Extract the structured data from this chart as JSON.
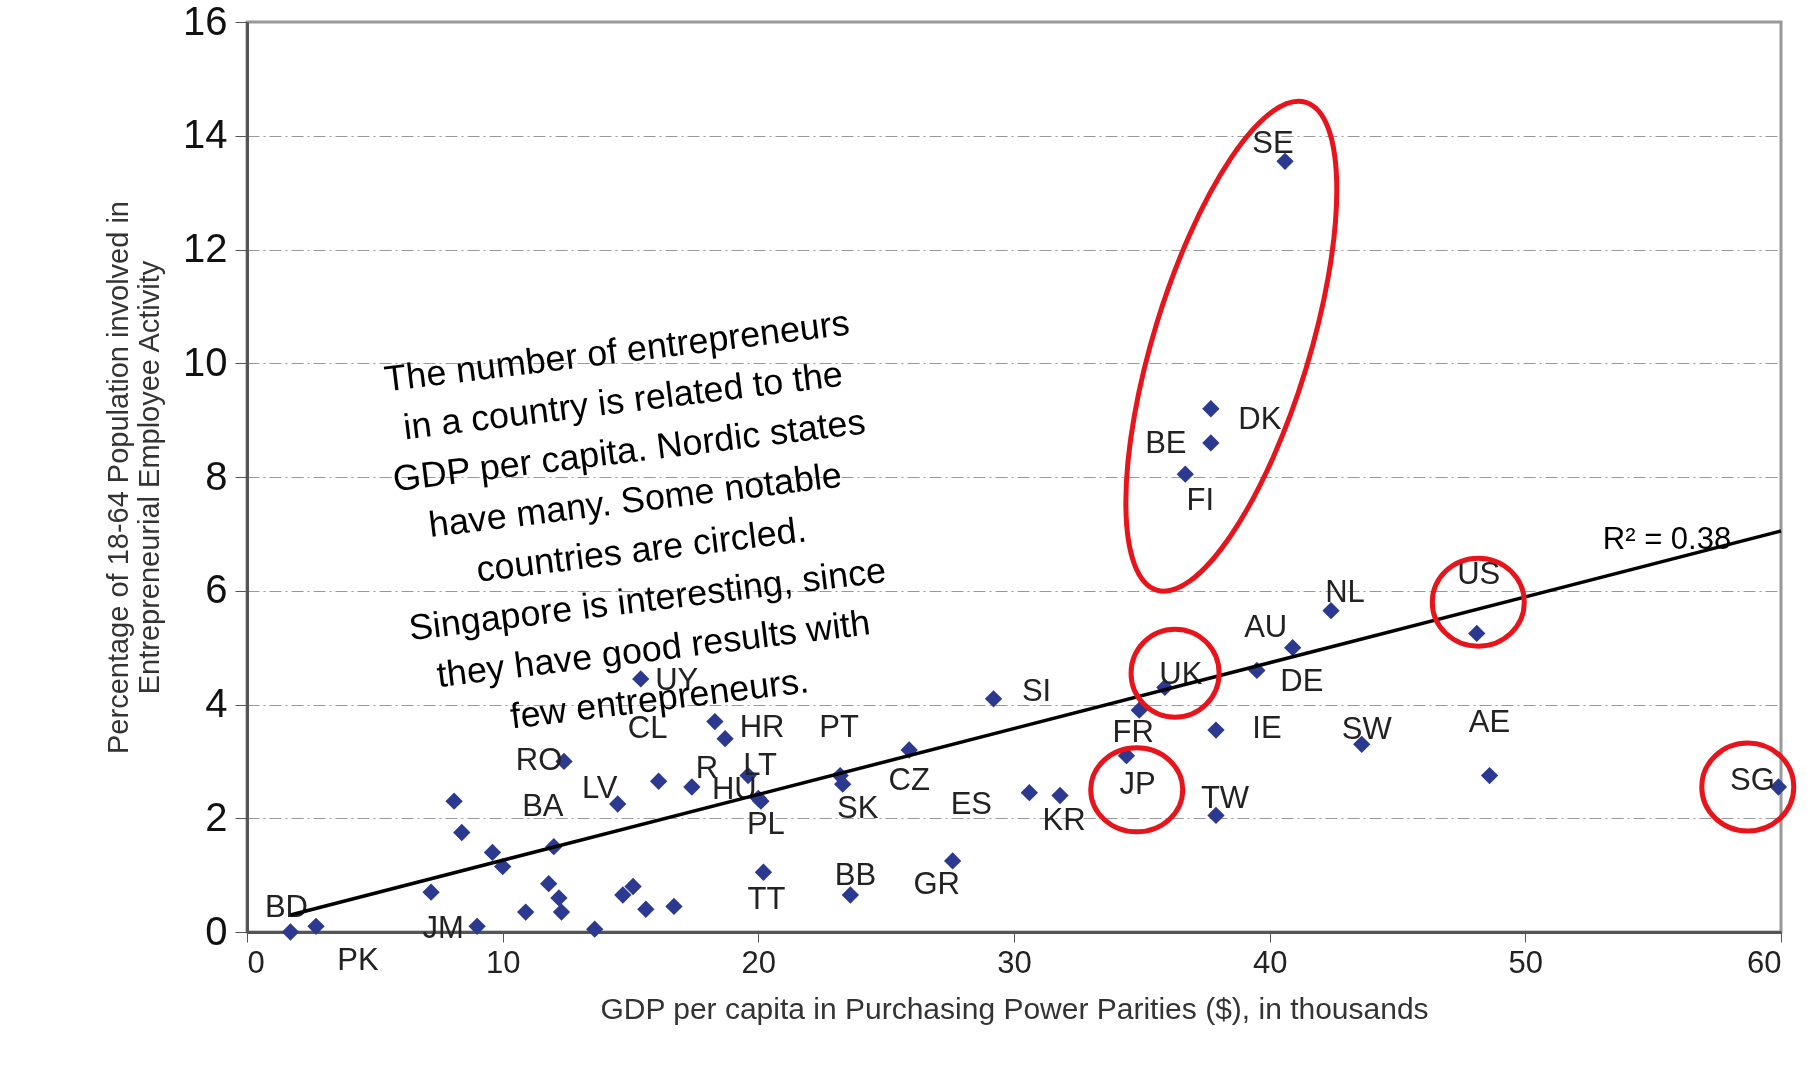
{
  "chart_data": {
    "type": "scatter",
    "xlabel": "GDP per capita in Purchasing Power Parities ($), in thousands",
    "ylabel": "Percentage of 18-64 Population involved in\nEntrepreneurial Employee Activity",
    "xlim": [
      0,
      60
    ],
    "xticks": [
      0,
      10,
      20,
      30,
      40,
      50,
      60
    ],
    "ylim": [
      0,
      16
    ],
    "yticks": [
      0,
      2,
      4,
      6,
      8,
      10,
      12,
      14,
      16
    ],
    "grid": "y",
    "marker": "diamond",
    "series": [
      {
        "color": "#2b3990",
        "x": [
          1.7,
          2.7,
          7.2,
          8.1,
          8.4,
          9.6,
          10.0,
          9.0,
          10.9,
          12.0,
          12.4,
          11.8,
          12.2,
          12.3,
          13.6,
          14.5,
          14.7,
          15.1,
          15.4,
          15.6,
          16.1,
          16.7,
          17.4,
          18.3,
          18.7,
          19.6,
          20.1,
          20.2,
          23.2,
          23.3,
          23.6,
          25.9,
          27.6,
          29.2,
          30.6,
          31.8,
          34.4,
          34.9,
          35.9,
          37.9,
          37.9,
          39.5,
          40.9,
          42.4,
          43.6,
          48.1,
          48.6,
          59.9,
          36.7,
          37.7,
          37.7,
          40.6,
          20.0
        ],
        "values": [
          0.0,
          0.1,
          0.7,
          2.3,
          1.75,
          1.4,
          1.15,
          0.1,
          0.35,
          1.5,
          3.0,
          0.85,
          0.6,
          0.35,
          0.05,
          2.25,
          0.65,
          0.8,
          4.45,
          0.4,
          2.65,
          0.45,
          2.55,
          3.7,
          3.4,
          2.75,
          2.3,
          1.05,
          2.75,
          2.6,
          0.65,
          3.2,
          1.25,
          4.1,
          2.45,
          2.4,
          3.1,
          3.9,
          4.3,
          3.55,
          2.05,
          4.6,
          5.0,
          5.65,
          3.3,
          5.25,
          2.75,
          2.55,
          8.05,
          8.6,
          9.2,
          13.55,
          2.35
        ],
        "value_labels": [
          "BD",
          "PK",
          null,
          null,
          null,
          null,
          null,
          "JM",
          null,
          "BA",
          "RO",
          null,
          null,
          null,
          null,
          "LV",
          null,
          null,
          "UY",
          null,
          "CL",
          null,
          "R",
          null,
          "HR",
          "LT",
          "PL",
          "TT",
          "PT",
          "SK",
          "BB",
          "CZ",
          "GR",
          "SI",
          "ES",
          "KR",
          "JP",
          "FR",
          "UK",
          "IE",
          "TW",
          "DE",
          "AU",
          "NL",
          "SW",
          "US",
          "AE",
          "SG",
          "FI",
          "BE",
          "DK",
          "SE",
          "HU"
        ]
      },
      {
        "type": "line",
        "marker": "none",
        "color": "#000000",
        "x": [
          1.7,
          60
        ],
        "values": [
          0.3,
          7.05
        ]
      }
    ],
    "annotations": [
      "The number of entrepreneurs\nin a country is related to the\nGDP per capita. Nordic states\nhave many. Some notable\ncountries are circled.\nSingapore is interesting, since\nthey have good results with\nfew entrepreneurs.",
      "R² = 0.38"
    ]
  }
}
